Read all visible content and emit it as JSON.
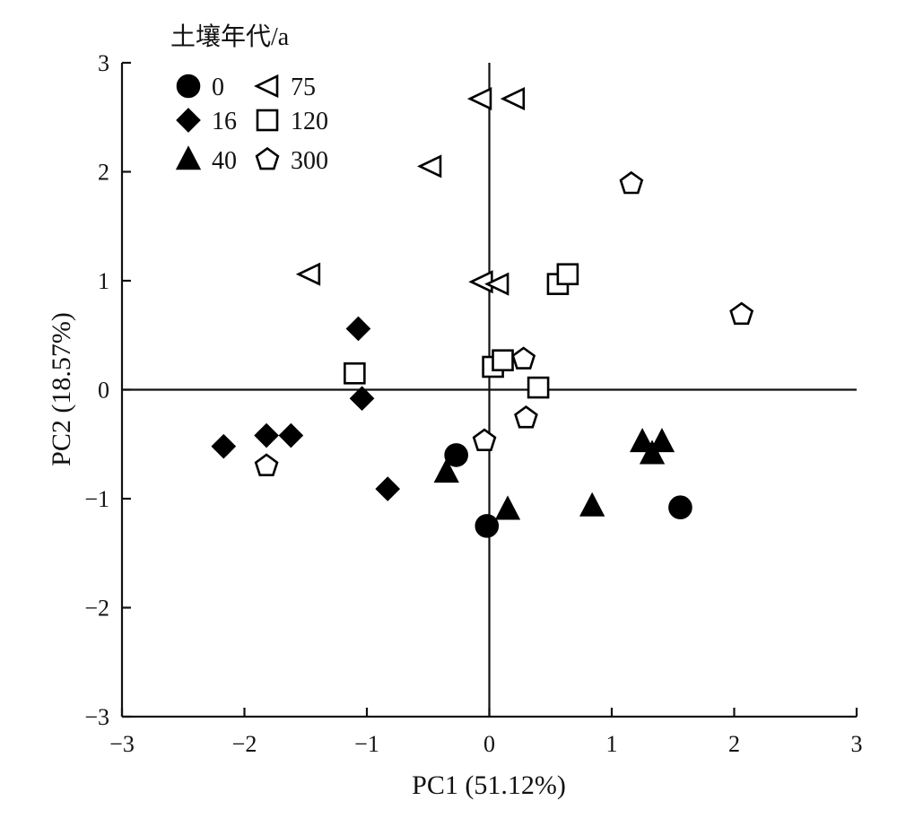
{
  "chart_data": {
    "type": "scatter",
    "xlabel": "PC1 (51.12%)",
    "ylabel": "PC2 (18.57%)",
    "xlim": [
      -3,
      3
    ],
    "ylim": [
      -3,
      3
    ],
    "xticks": [
      -3,
      -2,
      -1,
      0,
      1,
      2,
      3
    ],
    "yticks": [
      -3,
      -2,
      -1,
      0,
      1,
      2,
      3
    ],
    "xtick_labels": [
      "−3",
      "−2",
      "−1",
      "0",
      "1",
      "2",
      "3"
    ],
    "ytick_labels": [
      "−3",
      "−2",
      "−1",
      "0",
      "1",
      "2",
      "3"
    ],
    "zero_lines": true,
    "grid": false,
    "legend": {
      "title": "土壤年代/a",
      "placement": "top-left",
      "columns": 2
    },
    "series": [
      {
        "name": "0",
        "marker": "circle",
        "filled": true,
        "points": [
          [
            -0.27,
            -0.6
          ],
          [
            -0.02,
            -1.25
          ],
          [
            1.56,
            -1.08
          ]
        ]
      },
      {
        "name": "16",
        "marker": "diamond",
        "filled": true,
        "points": [
          [
            -2.17,
            -0.52
          ],
          [
            -1.82,
            -0.42
          ],
          [
            -1.62,
            -0.42
          ],
          [
            -1.07,
            0.56
          ],
          [
            -1.04,
            -0.08
          ],
          [
            -0.83,
            -0.91
          ]
        ]
      },
      {
        "name": "40",
        "marker": "triangle-up",
        "filled": true,
        "points": [
          [
            -0.35,
            -0.76
          ],
          [
            0.15,
            -1.1
          ],
          [
            0.84,
            -1.07
          ],
          [
            1.25,
            -0.48
          ],
          [
            1.33,
            -0.59
          ],
          [
            1.41,
            -0.48
          ]
        ]
      },
      {
        "name": "75",
        "marker": "triangle-left",
        "filled": false,
        "points": [
          [
            -0.07,
            2.67
          ],
          [
            0.2,
            2.67
          ],
          [
            -0.48,
            2.05
          ],
          [
            -1.47,
            1.06
          ],
          [
            -0.06,
            0.99
          ],
          [
            0.07,
            0.97
          ]
        ]
      },
      {
        "name": "120",
        "marker": "square",
        "filled": false,
        "points": [
          [
            -1.1,
            0.15
          ],
          [
            0.03,
            0.21
          ],
          [
            0.11,
            0.27
          ],
          [
            0.4,
            0.02
          ],
          [
            0.56,
            0.97
          ],
          [
            0.64,
            1.06
          ]
        ]
      },
      {
        "name": "300",
        "marker": "pentagon",
        "filled": false,
        "points": [
          [
            1.16,
            1.89
          ],
          [
            2.06,
            0.69
          ],
          [
            -1.82,
            -0.7
          ],
          [
            -0.04,
            -0.47
          ],
          [
            0.28,
            0.28
          ],
          [
            0.3,
            -0.26
          ]
        ]
      }
    ]
  }
}
